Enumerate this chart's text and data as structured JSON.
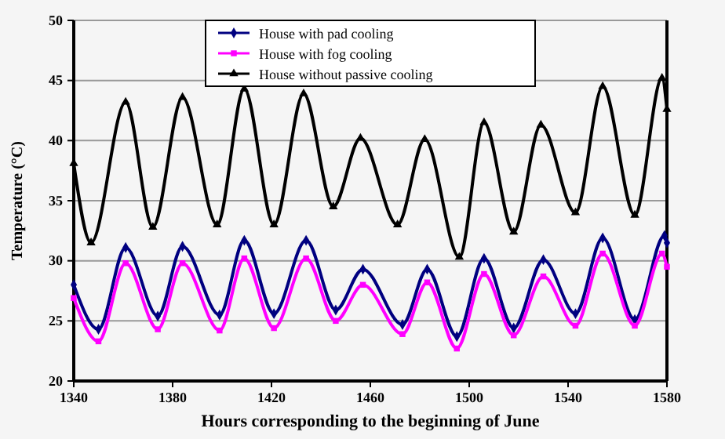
{
  "chart_data": {
    "type": "line",
    "xlabel": "Hours corresponding to the beginning of June",
    "ylabel": "Temperature (°C)",
    "xlim": [
      1340,
      1580
    ],
    "xticks": [
      1340,
      1380,
      1420,
      1460,
      1500,
      1540,
      1580
    ],
    "ylim": [
      20,
      50
    ],
    "yticks": [
      20,
      25,
      30,
      35,
      40,
      45,
      50
    ],
    "grid": "y",
    "legend": "top",
    "series": [
      {
        "name": "House with pad cooling",
        "color": "#000080",
        "marker": "diamond",
        "x": [
          1340,
          1350,
          1361,
          1374,
          1384,
          1399,
          1409,
          1421,
          1434,
          1446,
          1457,
          1473,
          1483,
          1495,
          1506,
          1518,
          1530,
          1543,
          1554,
          1567,
          1579,
          1580
        ],
        "values": [
          28,
          24.3,
          31.1,
          25.4,
          31.2,
          25.5,
          31.7,
          25.6,
          31.7,
          25.9,
          29.3,
          24.7,
          29.3,
          23.7,
          30.2,
          24.4,
          30.1,
          25.6,
          31.9,
          25.1,
          32.1,
          31.5
        ]
      },
      {
        "name": "House with fog cooling",
        "color": "#ff00ff",
        "marker": "square",
        "x": [
          1340,
          1350,
          1361,
          1374,
          1384,
          1399,
          1409,
          1421,
          1434,
          1446,
          1457,
          1473,
          1483,
          1495,
          1506,
          1518,
          1530,
          1543,
          1554,
          1567,
          1578,
          1580
        ],
        "values": [
          26.9,
          23.3,
          29.8,
          24.3,
          29.8,
          24.2,
          30.2,
          24.4,
          30.2,
          25,
          28,
          23.9,
          28.2,
          22.7,
          28.9,
          23.8,
          28.7,
          24.6,
          30.6,
          24.6,
          30.6,
          29.5
        ]
      },
      {
        "name": "House without passive cooling",
        "color": "#000000",
        "marker": "triangle",
        "x": [
          1340,
          1347,
          1361,
          1372,
          1384,
          1398,
          1409,
          1421,
          1433,
          1445,
          1456,
          1471,
          1482,
          1496,
          1506,
          1518,
          1529,
          1543,
          1554,
          1567,
          1578,
          1580
        ],
        "values": [
          38.1,
          31.5,
          43.2,
          32.8,
          43.6,
          33,
          44.3,
          33,
          43.9,
          34.5,
          40.2,
          33,
          40.1,
          30.3,
          41.5,
          32.4,
          41.3,
          34,
          44.5,
          33.8,
          45.2,
          42.6
        ]
      }
    ]
  }
}
